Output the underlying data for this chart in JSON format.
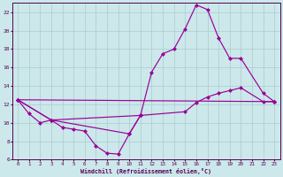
{
  "xlabel": "Windchill (Refroidissement éolien,°C)",
  "bg_color": "#cce8ea",
  "line_color": "#990099",
  "grid_color": "#aaccd0",
  "text_color": "#550055",
  "xlim": [
    -0.5,
    23.5
  ],
  "ylim": [
    6,
    23
  ],
  "xticks": [
    0,
    1,
    2,
    3,
    4,
    5,
    6,
    7,
    8,
    9,
    10,
    11,
    12,
    13,
    14,
    15,
    16,
    17,
    18,
    19,
    20,
    21,
    22,
    23
  ],
  "yticks": [
    6,
    8,
    10,
    12,
    14,
    16,
    18,
    20,
    22
  ],
  "line1_x": [
    0,
    1,
    2,
    3,
    4,
    5,
    6,
    7,
    8,
    9,
    10,
    11
  ],
  "line1_y": [
    12.5,
    11.0,
    10.0,
    10.3,
    9.5,
    9.3,
    9.1,
    7.5,
    6.7,
    6.6,
    8.8,
    10.8
  ],
  "line2_x": [
    0,
    3,
    10,
    11,
    12,
    13,
    14,
    15,
    16,
    17,
    18,
    19,
    20,
    22,
    23
  ],
  "line2_y": [
    12.5,
    10.3,
    8.8,
    10.8,
    15.5,
    17.5,
    18.0,
    20.2,
    22.8,
    22.3,
    19.2,
    17.0,
    17.0,
    13.2,
    12.3
  ],
  "line3_x": [
    0,
    3,
    11,
    15,
    16,
    17,
    18,
    19,
    20,
    22,
    23
  ],
  "line3_y": [
    12.5,
    10.3,
    10.8,
    11.2,
    12.2,
    12.8,
    13.2,
    13.5,
    13.8,
    12.3,
    12.3
  ],
  "line4_x": [
    0,
    23
  ],
  "line4_y": [
    12.5,
    12.3
  ]
}
